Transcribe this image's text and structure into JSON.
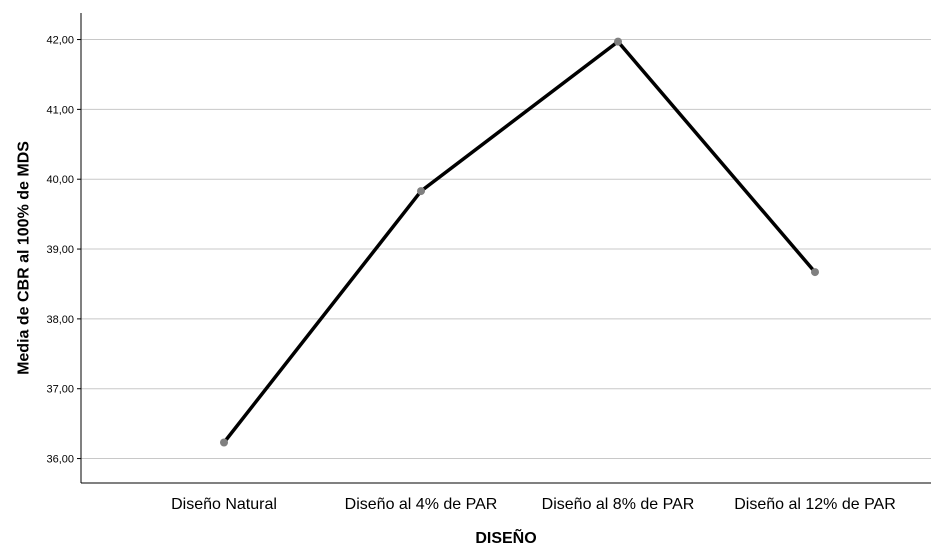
{
  "chart_data": {
    "type": "line",
    "categories": [
      "Diseño Natural",
      "Diseño al 4% de PAR",
      "Diseño al 8% de PAR",
      "Diseño al 12% de PAR"
    ],
    "series": [
      {
        "values": [
          36.23,
          39.83,
          41.97,
          38.67
        ]
      }
    ],
    "xlabel": "DISEÑO",
    "ylabel": "Media de CBR al 100% de MDS",
    "ylim": [
      35.65,
      42.38
    ],
    "yticks": [
      36,
      37,
      38,
      39,
      40,
      41,
      42
    ],
    "ytick_labels": [
      "36,00",
      "37,00",
      "38,00",
      "39,00",
      "40,00",
      "41,00",
      "42,00"
    ],
    "grid": true,
    "colors": {
      "line": "#000000",
      "marker": "#808080",
      "grid": "#c8c8c8",
      "axis": "#000000"
    }
  }
}
